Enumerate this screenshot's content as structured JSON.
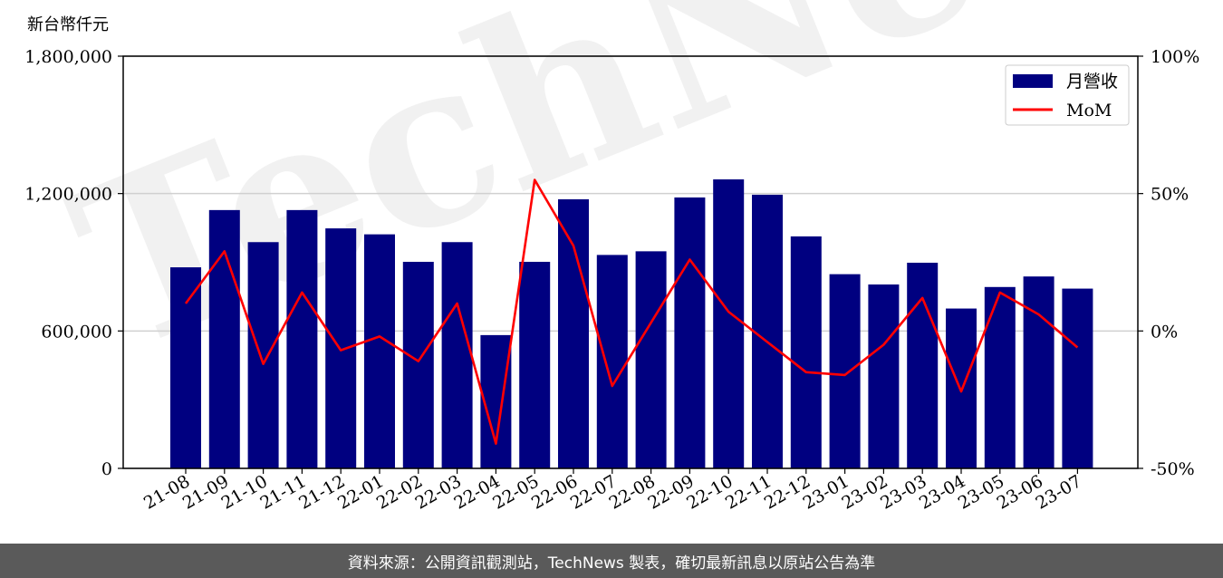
{
  "chart_data": {
    "type": "bar",
    "y_unit_label": "新台幣仟元",
    "categories": [
      "21-08",
      "21-09",
      "21-10",
      "21-11",
      "21-12",
      "22-01",
      "22-02",
      "22-03",
      "22-04",
      "22-05",
      "22-06",
      "22-07",
      "22-08",
      "22-09",
      "22-10",
      "22-11",
      "22-12",
      "23-01",
      "23-02",
      "23-03",
      "23-04",
      "23-05",
      "23-06",
      "23-07"
    ],
    "series": [
      {
        "name": "月營收",
        "kind": "bar",
        "axis": "left",
        "color": "#000080",
        "values": [
          878000,
          1128000,
          988000,
          1128000,
          1048000,
          1022000,
          902000,
          988000,
          582000,
          902000,
          1175000,
          932000,
          948000,
          1183000,
          1262000,
          1195000,
          1013000,
          848000,
          803000,
          898000,
          698000,
          792000,
          838000,
          785000
        ]
      },
      {
        "name": "MoM",
        "kind": "line",
        "axis": "right",
        "color": "#ff0000",
        "values": [
          10,
          29,
          -12,
          14,
          -7,
          -2,
          -11,
          10,
          -41,
          55,
          31,
          -20,
          3,
          26,
          7,
          -4,
          -15,
          -16,
          -5,
          12,
          -22,
          14,
          6,
          -6
        ]
      }
    ],
    "y_left": {
      "min": 0,
      "max": 1800000,
      "ticks": [
        0,
        600000,
        1200000,
        1800000
      ],
      "tick_labels": [
        "0",
        "600,000",
        "1,200,000",
        "1,800,000"
      ]
    },
    "y_right": {
      "min": -50,
      "max": 100,
      "ticks": [
        -50,
        0,
        50,
        100
      ],
      "tick_labels": [
        "-50%",
        "0%",
        "50%",
        "100%"
      ]
    },
    "grid": "horizontal",
    "legend_position": "top-right",
    "watermark": "TechNews"
  },
  "footer": {
    "text": "資料來源：公開資訊觀測站，TechNews 製表，確切最新訊息以原站公告為準"
  }
}
